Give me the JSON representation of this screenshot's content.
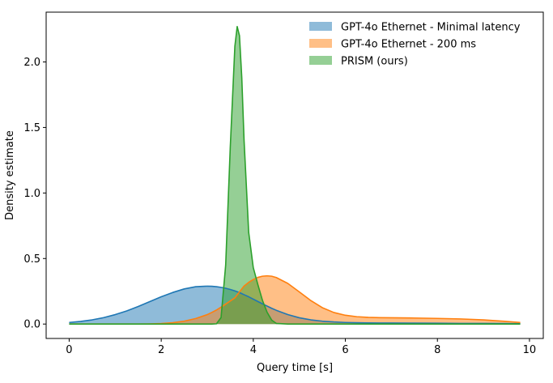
{
  "chart_data": {
    "type": "area",
    "title": "",
    "xlabel": "Query time [s]",
    "ylabel": "Density estimate",
    "xlim": [
      -0.5,
      10.3
    ],
    "ylim": [
      -0.11,
      2.38
    ],
    "xticks": [
      0,
      2,
      4,
      6,
      8,
      10
    ],
    "xtick_labels": [
      "0",
      "2",
      "4",
      "6",
      "8",
      "10"
    ],
    "yticks": [
      0.0,
      0.5,
      1.0,
      1.5,
      2.0
    ],
    "ytick_labels": [
      "0.0",
      "0.5",
      "1.0",
      "1.5",
      "2.0"
    ],
    "grid": false,
    "legend_position": "top-right",
    "x": [
      0,
      0.25,
      0.5,
      0.75,
      1.0,
      1.25,
      1.5,
      1.75,
      2.0,
      2.25,
      2.5,
      2.75,
      3.0,
      3.1,
      3.2,
      3.3,
      3.4,
      3.5,
      3.6,
      3.65,
      3.7,
      3.75,
      3.8,
      3.9,
      4.0,
      4.1,
      4.2,
      4.3,
      4.4,
      4.5,
      4.75,
      5.0,
      5.25,
      5.5,
      5.75,
      6.0,
      6.25,
      6.5,
      6.75,
      7.0,
      7.5,
      8.0,
      8.5,
      9.0,
      9.5,
      9.8
    ],
    "series": [
      {
        "name": "GPT-4o Ethernet - Minimal latency",
        "color": "#1f77b4",
        "values": [
          0.012,
          0.02,
          0.032,
          0.049,
          0.072,
          0.1,
          0.134,
          0.171,
          0.208,
          0.241,
          0.268,
          0.285,
          0.289,
          0.288,
          0.285,
          0.28,
          0.273,
          0.264,
          0.253,
          0.247,
          0.24,
          0.232,
          0.224,
          0.208,
          0.19,
          0.172,
          0.154,
          0.137,
          0.12,
          0.105,
          0.072,
          0.048,
          0.032,
          0.022,
          0.016,
          0.012,
          0.01,
          0.009,
          0.008,
          0.008,
          0.007,
          0.006,
          0.005,
          0.005,
          0.004,
          0.003
        ]
      },
      {
        "name": "GPT-4o Ethernet - 200 ms",
        "color": "#ff7f0e",
        "values": [
          0,
          0,
          0,
          0,
          0,
          0,
          0,
          0.001,
          0.004,
          0.01,
          0.022,
          0.042,
          0.072,
          0.089,
          0.107,
          0.129,
          0.152,
          0.176,
          0.2,
          0.223,
          0.245,
          0.268,
          0.29,
          0.318,
          0.34,
          0.356,
          0.365,
          0.368,
          0.365,
          0.355,
          0.31,
          0.245,
          0.179,
          0.125,
          0.088,
          0.067,
          0.056,
          0.051,
          0.049,
          0.048,
          0.046,
          0.043,
          0.039,
          0.032,
          0.02,
          0.012
        ]
      },
      {
        "name": "PRISM (ours)",
        "color": "#2ca02c",
        "values": [
          0,
          0,
          0,
          0,
          0,
          0,
          0,
          0,
          0,
          0,
          0,
          0,
          0,
          0,
          0.002,
          0.05,
          0.45,
          1.35,
          2.12,
          2.27,
          2.2,
          1.88,
          1.4,
          0.7,
          0.43,
          0.3,
          0.18,
          0.09,
          0.03,
          0.005,
          0,
          0,
          0,
          0,
          0,
          0,
          0,
          0,
          0,
          0,
          0,
          0,
          0,
          0,
          0,
          0
        ]
      }
    ]
  }
}
